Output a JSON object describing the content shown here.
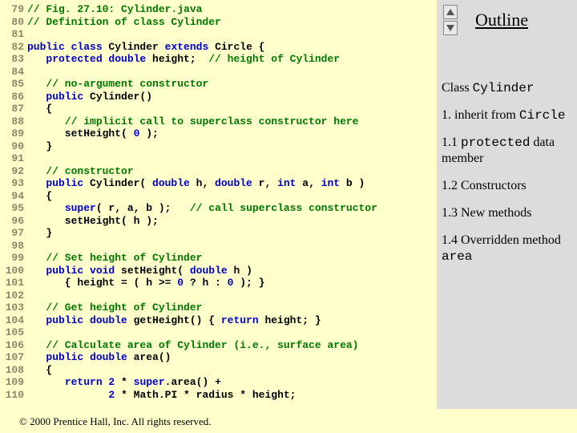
{
  "outline": {
    "title": "Outline",
    "items": [
      {
        "prefix": "Class ",
        "mono": "Cylinder",
        "suffix": ""
      },
      {
        "prefix": "1. inherit from ",
        "mono": "Circle",
        "suffix": ""
      },
      {
        "prefix": "1.1 ",
        "mono": "protected",
        "suffix": " data member"
      },
      {
        "prefix": "1.2 Constructors",
        "mono": "",
        "suffix": ""
      },
      {
        "prefix": "1.3 New methods",
        "mono": "",
        "suffix": ""
      },
      {
        "prefix": "1.4 Overridden method ",
        "mono": "area",
        "suffix": ""
      }
    ]
  },
  "footer": "© 2000 Prentice Hall, Inc.  All rights reserved.",
  "code": [
    {
      "n": "79",
      "segs": [
        {
          "t": "// Fig. 27.10: Cylinder.java",
          "c": "kw-green"
        }
      ]
    },
    {
      "n": "80",
      "segs": [
        {
          "t": "// Definition of class Cylinder",
          "c": "kw-green"
        }
      ]
    },
    {
      "n": "81",
      "segs": []
    },
    {
      "n": "82",
      "segs": [
        {
          "t": "public class ",
          "c": "kw-blue"
        },
        {
          "t": "Cylinder ",
          "c": "ct"
        },
        {
          "t": "extends ",
          "c": "kw-blue"
        },
        {
          "t": "Circle {",
          "c": "ct"
        }
      ]
    },
    {
      "n": "83",
      "segs": [
        {
          "t": "   ",
          "c": "ct"
        },
        {
          "t": "protected double ",
          "c": "kw-blue"
        },
        {
          "t": "height;  ",
          "c": "ct"
        },
        {
          "t": "// height of Cylinder",
          "c": "kw-green"
        }
      ]
    },
    {
      "n": "84",
      "segs": []
    },
    {
      "n": "85",
      "segs": [
        {
          "t": "   ",
          "c": "ct"
        },
        {
          "t": "// no-argument constructor",
          "c": "kw-green"
        }
      ]
    },
    {
      "n": "86",
      "segs": [
        {
          "t": "   ",
          "c": "ct"
        },
        {
          "t": "public ",
          "c": "kw-blue"
        },
        {
          "t": "Cylinder()",
          "c": "ct"
        }
      ]
    },
    {
      "n": "87",
      "segs": [
        {
          "t": "   {",
          "c": "ct"
        }
      ]
    },
    {
      "n": "88",
      "segs": [
        {
          "t": "      ",
          "c": "ct"
        },
        {
          "t": "// implicit call to superclass constructor here",
          "c": "kw-green"
        }
      ]
    },
    {
      "n": "89",
      "segs": [
        {
          "t": "      setHeight( ",
          "c": "ct"
        },
        {
          "t": "0",
          "c": "kw-blue"
        },
        {
          "t": " );",
          "c": "ct"
        }
      ]
    },
    {
      "n": "90",
      "segs": [
        {
          "t": "   }",
          "c": "ct"
        }
      ]
    },
    {
      "n": "91",
      "segs": []
    },
    {
      "n": "92",
      "segs": [
        {
          "t": "   ",
          "c": "ct"
        },
        {
          "t": "// constructor",
          "c": "kw-green"
        }
      ]
    },
    {
      "n": "93",
      "segs": [
        {
          "t": "   ",
          "c": "ct"
        },
        {
          "t": "public ",
          "c": "kw-blue"
        },
        {
          "t": "Cylinder( ",
          "c": "ct"
        },
        {
          "t": "double ",
          "c": "kw-blue"
        },
        {
          "t": "h, ",
          "c": "ct"
        },
        {
          "t": "double ",
          "c": "kw-blue"
        },
        {
          "t": "r, ",
          "c": "ct"
        },
        {
          "t": "int ",
          "c": "kw-blue"
        },
        {
          "t": "a, ",
          "c": "ct"
        },
        {
          "t": "int ",
          "c": "kw-blue"
        },
        {
          "t": "b )",
          "c": "ct"
        }
      ]
    },
    {
      "n": "94",
      "segs": [
        {
          "t": "   {",
          "c": "ct"
        }
      ]
    },
    {
      "n": "95",
      "segs": [
        {
          "t": "      ",
          "c": "ct"
        },
        {
          "t": "super",
          "c": "kw-blue"
        },
        {
          "t": "( r, a, b );   ",
          "c": "ct"
        },
        {
          "t": "// call superclass constructor",
          "c": "kw-green"
        }
      ]
    },
    {
      "n": "96",
      "segs": [
        {
          "t": "      setHeight( h );",
          "c": "ct"
        }
      ]
    },
    {
      "n": "97",
      "segs": [
        {
          "t": "   }",
          "c": "ct"
        }
      ]
    },
    {
      "n": "98",
      "segs": []
    },
    {
      "n": "99",
      "segs": [
        {
          "t": "   ",
          "c": "ct"
        },
        {
          "t": "// Set height of Cylinder",
          "c": "kw-green"
        }
      ]
    },
    {
      "n": "100",
      "segs": [
        {
          "t": "   ",
          "c": "ct"
        },
        {
          "t": "public void ",
          "c": "kw-blue"
        },
        {
          "t": "setHeight( ",
          "c": "ct"
        },
        {
          "t": "double ",
          "c": "kw-blue"
        },
        {
          "t": "h )",
          "c": "ct"
        }
      ]
    },
    {
      "n": "101",
      "segs": [
        {
          "t": "      { height = ( h >= ",
          "c": "ct"
        },
        {
          "t": "0",
          "c": "kw-blue"
        },
        {
          "t": " ? h : ",
          "c": "ct"
        },
        {
          "t": "0",
          "c": "kw-blue"
        },
        {
          "t": " ); }",
          "c": "ct"
        }
      ]
    },
    {
      "n": "102",
      "segs": []
    },
    {
      "n": "103",
      "segs": [
        {
          "t": "   ",
          "c": "ct"
        },
        {
          "t": "// Get height of Cylinder",
          "c": "kw-green"
        }
      ]
    },
    {
      "n": "104",
      "segs": [
        {
          "t": "   ",
          "c": "ct"
        },
        {
          "t": "public double ",
          "c": "kw-blue"
        },
        {
          "t": "getHeight() { ",
          "c": "ct"
        },
        {
          "t": "return ",
          "c": "kw-blue"
        },
        {
          "t": "height; }",
          "c": "ct"
        }
      ]
    },
    {
      "n": "105",
      "segs": []
    },
    {
      "n": "106",
      "segs": [
        {
          "t": "   ",
          "c": "ct"
        },
        {
          "t": "// Calculate area of Cylinder (i.e., surface area)",
          "c": "kw-green"
        }
      ]
    },
    {
      "n": "107",
      "segs": [
        {
          "t": "   ",
          "c": "ct"
        },
        {
          "t": "public double ",
          "c": "kw-blue"
        },
        {
          "t": "area()",
          "c": "ct"
        }
      ]
    },
    {
      "n": "108",
      "segs": [
        {
          "t": "   {",
          "c": "ct"
        }
      ]
    },
    {
      "n": "109",
      "segs": [
        {
          "t": "      ",
          "c": "ct"
        },
        {
          "t": "return ",
          "c": "kw-blue"
        },
        {
          "t": "2",
          "c": "kw-blue"
        },
        {
          "t": " * ",
          "c": "ct"
        },
        {
          "t": "super",
          "c": "kw-blue"
        },
        {
          "t": ".area() +",
          "c": "ct"
        }
      ]
    },
    {
      "n": "110",
      "segs": [
        {
          "t": "             ",
          "c": "ct"
        },
        {
          "t": "2",
          "c": "kw-blue"
        },
        {
          "t": " * Math.PI * radius * height;",
          "c": "ct"
        }
      ]
    }
  ]
}
